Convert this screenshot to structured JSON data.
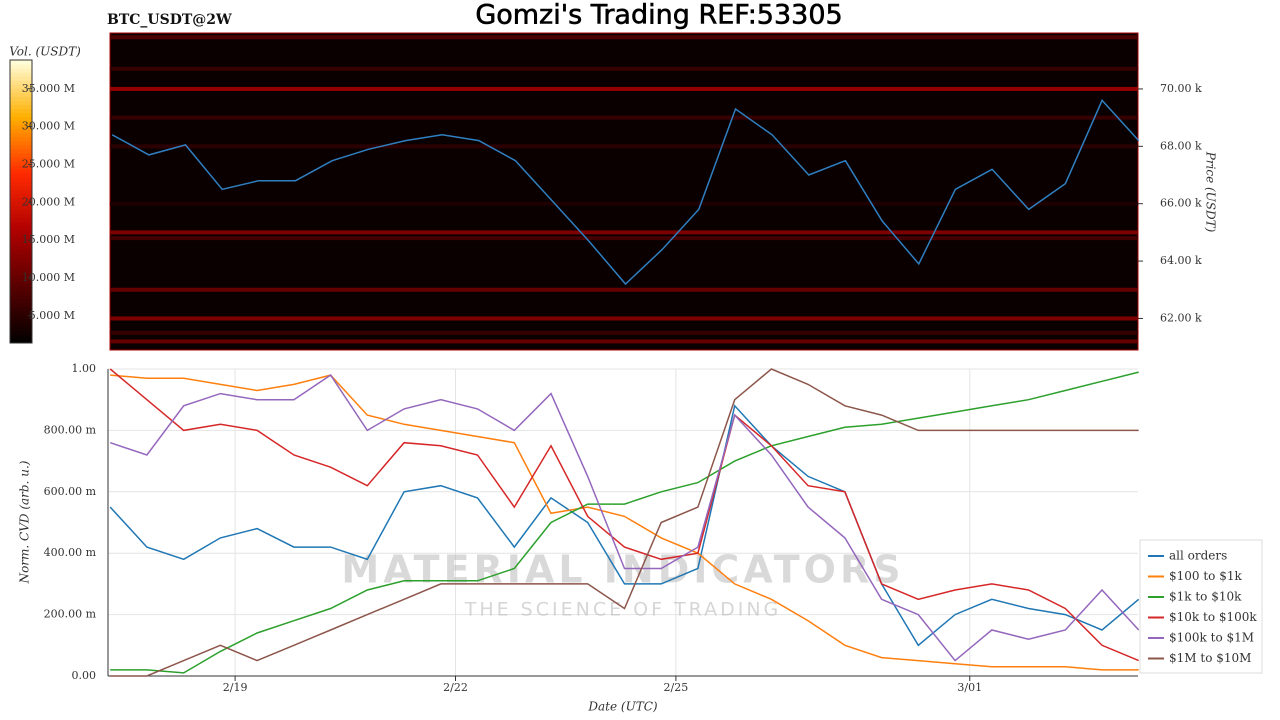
{
  "chart_data": [
    {
      "type": "heatmap",
      "title": "Gomzi's Trading REF:53305",
      "subtitle": "BTC_USDT@2W",
      "y_label": "Price (USDT)",
      "colorbar_label": "Vol. (USDT)",
      "xlim": [
        17.27,
        31.29
      ],
      "x": [
        17.3,
        17.8,
        18.3,
        18.8,
        19.3,
        19.8,
        20.3,
        20.8,
        21.3,
        21.8,
        22.3,
        22.8,
        23.3,
        23.8,
        24.3,
        24.8,
        25.3,
        25.8,
        26.3,
        26.8,
        27.3,
        27.8,
        28.3,
        28.8,
        29.3,
        29.8,
        30.3,
        30.8,
        31.3
      ],
      "series": [
        {
          "color": "#2f7fc1",
          "values": [
            68400,
            67700,
            68050,
            66500,
            66800,
            66800,
            67500,
            67900,
            68200,
            68400,
            68200,
            67500,
            66100,
            64700,
            63200,
            64400,
            65800,
            69300,
            68400,
            67000,
            67500,
            65400,
            63900,
            66500,
            67200,
            65800,
            66700,
            69600,
            68200
          ]
        }
      ],
      "heatmap": {
        "prices": [
          71800,
          70700,
          70000,
          69000,
          68000,
          66000,
          65000,
          64800,
          63000,
          62000,
          61500,
          61200
        ],
        "volumes": [
          8000000,
          6000000,
          14000000,
          6000000,
          5000000,
          4000000,
          12000000,
          7000000,
          10000000,
          12000000,
          6000000,
          10000000
        ]
      },
      "ylim": [
        60900,
        71950
      ],
      "yticks": [
        {
          "value": 62000,
          "label": "62.00 k"
        },
        {
          "value": 64000,
          "label": "64.00 k"
        },
        {
          "value": 66000,
          "label": "66.00 k"
        },
        {
          "value": 68000,
          "label": "68.00 k"
        },
        {
          "value": 70000,
          "label": "70.00 k"
        }
      ],
      "clim": [
        1400000,
        38800000
      ],
      "cticks": [
        {
          "value": 5000000,
          "label": "5.000 M"
        },
        {
          "value": 10000000,
          "label": "10.000 M"
        },
        {
          "value": 15000000,
          "label": "15.000 M"
        },
        {
          "value": 20000000,
          "label": "20.000 M"
        },
        {
          "value": 25000000,
          "label": "25.000 M"
        },
        {
          "value": 30000000,
          "label": "30.000 M"
        },
        {
          "value": 35000000,
          "label": "35.000 M"
        }
      ]
    },
    {
      "type": "line",
      "x_label": "Date (UTC)",
      "y_label": "Norm. CVD (arb. u.)",
      "watermark": [
        "MATERIAL INDICATORS",
        "THE SCIENCE OF TRADING"
      ],
      "xlim": [
        17.27,
        31.29
      ],
      "xticks": [
        {
          "value": 19,
          "label": "2/19"
        },
        {
          "value": 22,
          "label": "2/22"
        },
        {
          "value": 25,
          "label": "2/25"
        },
        {
          "value": 29,
          "label": "3/01"
        }
      ],
      "x": [
        17.3,
        17.8,
        18.3,
        18.8,
        19.3,
        19.8,
        20.3,
        20.8,
        21.3,
        21.8,
        22.3,
        22.8,
        23.3,
        23.8,
        24.3,
        24.8,
        25.3,
        25.8,
        26.3,
        26.8,
        27.3,
        27.8,
        28.3,
        28.8,
        29.3,
        29.8,
        30.3,
        30.8,
        31.3
      ],
      "ylim": [
        0,
        1
      ],
      "yticks": [
        {
          "value": 0,
          "label": "0.00"
        },
        {
          "value": 0.2,
          "label": "200.00 m"
        },
        {
          "value": 0.4,
          "label": "400.00 m"
        },
        {
          "value": 0.6,
          "label": "600.00 m"
        },
        {
          "value": 0.8,
          "label": "800.00 m"
        },
        {
          "value": 1,
          "label": "1.00"
        }
      ],
      "grid": true,
      "series": [
        {
          "name": "all orders",
          "color": "#1f77b4",
          "values": [
            0.55,
            0.42,
            0.38,
            0.45,
            0.48,
            0.42,
            0.42,
            0.38,
            0.6,
            0.62,
            0.58,
            0.42,
            0.58,
            0.5,
            0.3,
            0.3,
            0.35,
            0.88,
            0.75,
            0.65,
            0.6,
            0.3,
            0.1,
            0.2,
            0.25,
            0.22,
            0.2,
            0.15,
            0.25
          ]
        },
        {
          "name": "$100 to $1k",
          "color": "#ff7f0e",
          "values": [
            0.98,
            0.97,
            0.97,
            0.95,
            0.93,
            0.95,
            0.98,
            0.85,
            0.82,
            0.8,
            0.78,
            0.76,
            0.53,
            0.55,
            0.52,
            0.45,
            0.4,
            0.3,
            0.25,
            0.18,
            0.1,
            0.06,
            0.05,
            0.04,
            0.03,
            0.03,
            0.03,
            0.02,
            0.02
          ]
        },
        {
          "name": "$1k to $10k",
          "color": "#2ca02c",
          "values": [
            0.02,
            0.02,
            0.01,
            0.08,
            0.14,
            0.18,
            0.22,
            0.28,
            0.31,
            0.31,
            0.31,
            0.35,
            0.5,
            0.56,
            0.56,
            0.6,
            0.63,
            0.7,
            0.75,
            0.78,
            0.81,
            0.82,
            0.84,
            0.86,
            0.88,
            0.9,
            0.93,
            0.96,
            0.99
          ]
        },
        {
          "name": "$10k to $100k",
          "color": "#d62728",
          "values": [
            1.0,
            0.9,
            0.8,
            0.82,
            0.8,
            0.72,
            0.68,
            0.62,
            0.76,
            0.75,
            0.72,
            0.55,
            0.75,
            0.52,
            0.42,
            0.38,
            0.4,
            0.85,
            0.75,
            0.62,
            0.6,
            0.3,
            0.25,
            0.28,
            0.3,
            0.28,
            0.22,
            0.1,
            0.05
          ]
        },
        {
          "name": "$100k to $1M",
          "color": "#9467bd",
          "values": [
            0.76,
            0.72,
            0.88,
            0.92,
            0.9,
            0.9,
            0.98,
            0.8,
            0.87,
            0.9,
            0.87,
            0.8,
            0.92,
            0.65,
            0.35,
            0.35,
            0.42,
            0.85,
            0.72,
            0.55,
            0.45,
            0.25,
            0.2,
            0.05,
            0.15,
            0.12,
            0.15,
            0.28,
            0.15
          ]
        },
        {
          "name": "$1M to $10M",
          "color": "#8c564b",
          "values": [
            0.0,
            0.0,
            0.05,
            0.1,
            0.05,
            0.1,
            0.15,
            0.2,
            0.25,
            0.3,
            0.3,
            0.3,
            0.3,
            0.3,
            0.22,
            0.5,
            0.55,
            0.9,
            1.0,
            0.95,
            0.88,
            0.85,
            0.8,
            0.8,
            0.8,
            0.8,
            0.8,
            0.8,
            0.8
          ]
        }
      ],
      "legend": "lower right"
    }
  ]
}
